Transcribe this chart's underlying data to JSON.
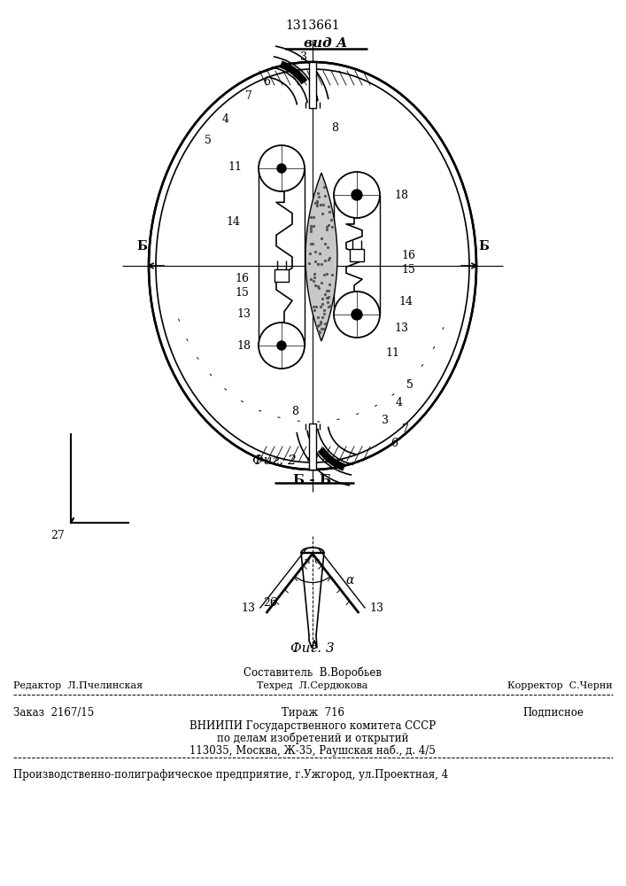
{
  "patent_number": "1313661",
  "view_label": "вид А",
  "fig2_label": "Фиг. 2",
  "fig3_label": "Фиг. 3",
  "section_label": "Б - Б",
  "footer_line1": "Составитель  В.Воробьев",
  "footer_editor": "Редактор  Л.Пчелинская",
  "footer_techred": "Техред  Л.Сердюкова",
  "footer_corrector": "Корректор  С.Черни",
  "footer_order": "Заказ  2167/15",
  "footer_tirazh": "Тираж  716",
  "footer_podpisnoe": "Подписное",
  "footer_vniip1": "ВНИИПИ Государственного комитета СССР",
  "footer_vniip2": "по делам изобретений и открытий",
  "footer_vniip3": "113035, Москва, Ж-35, Раушская наб., д. 4/5",
  "footer_prod": "Производственно-полиграфическое предприятие, г.Ужгород, ул.Проектная, 4",
  "bg_color": "#ffffff",
  "line_color": "#000000",
  "text_color": "#000000"
}
